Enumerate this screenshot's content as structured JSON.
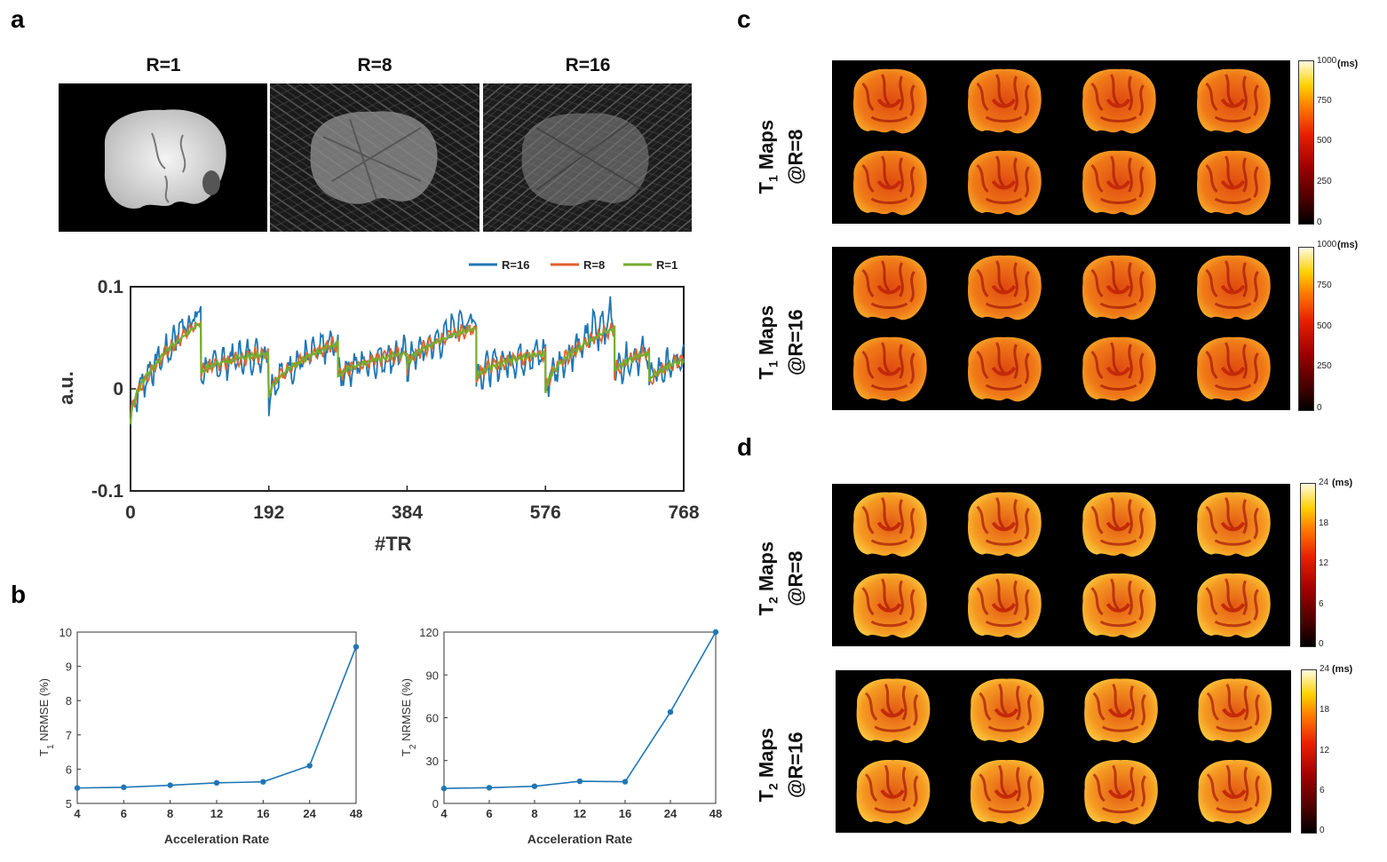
{
  "panel_a": {
    "letter": "a",
    "image_titles": [
      "R=1",
      "R=8",
      "R=16"
    ]
  },
  "panel_b": {
    "letter": "b"
  },
  "panel_c": {
    "letter": "c",
    "rows": [
      {
        "label_main": "T",
        "label_sub": "1",
        "label_rest": " Maps",
        "label_line2": "@R=8",
        "cbar_ticks": [
          "1000",
          "750",
          "500",
          "250",
          "0"
        ],
        "unit": "(ms)"
      },
      {
        "label_main": "T",
        "label_sub": "1",
        "label_rest": " Maps",
        "label_line2": "@R=16",
        "cbar_ticks": [
          "1000",
          "750",
          "500",
          "250",
          "0"
        ],
        "unit": "(ms)"
      }
    ]
  },
  "panel_d": {
    "letter": "d",
    "rows": [
      {
        "label_main": "T",
        "label_sub": "2",
        "label_rest": " Maps",
        "label_line2": "@R=8",
        "cbar_ticks": [
          "24",
          "18",
          "12",
          "6",
          "0"
        ],
        "unit": "(ms)"
      },
      {
        "label_main": "T",
        "label_sub": "2",
        "label_rest": " Maps",
        "label_line2": "@R=16",
        "cbar_ticks": [
          "24",
          "18",
          "12",
          "6",
          "0"
        ],
        "unit": "(ms)"
      }
    ]
  },
  "colors": {
    "r16": "#1f77b4",
    "r8": "#e0622a",
    "r1": "#77ac30",
    "blue": "#1f77b4"
  },
  "chart_data": [
    {
      "type": "line",
      "id": "signal",
      "title": "",
      "xlabel": "#TR",
      "ylabel": "a.u.",
      "xlim": [
        0,
        768
      ],
      "ylim": [
        -0.1,
        0.1
      ],
      "xticks": [
        0,
        192,
        384,
        576,
        768
      ],
      "yticks": [
        -0.1,
        0,
        0.1
      ],
      "xtick_labels": [
        "0",
        "192",
        "384",
        "576",
        "768"
      ],
      "ytick_labels": [
        "-0.1",
        "0",
        "0.1"
      ],
      "legend": [
        "R=16",
        "R=8",
        "R=1"
      ],
      "legend_position": "top-right",
      "segments": [
        {
          "x0": 0,
          "x1": 98,
          "y0": -0.035,
          "y1": 0.065
        },
        {
          "x0": 98,
          "x1": 192,
          "y0": 0.015,
          "y1": 0.035
        },
        {
          "x0": 192,
          "x1": 288,
          "y0": -0.01,
          "y1": 0.045
        },
        {
          "x0": 288,
          "x1": 384,
          "y0": 0.01,
          "y1": 0.035
        },
        {
          "x0": 384,
          "x1": 480,
          "y0": 0.02,
          "y1": 0.06
        },
        {
          "x0": 480,
          "x1": 576,
          "y0": 0.01,
          "y1": 0.035
        },
        {
          "x0": 576,
          "x1": 672,
          "y0": -0.005,
          "y1": 0.06
        },
        {
          "x0": 672,
          "x1": 720,
          "y0": 0.015,
          "y1": 0.035
        },
        {
          "x0": 720,
          "x1": 768,
          "y0": 0.005,
          "y1": 0.028
        }
      ]
    },
    {
      "type": "line",
      "id": "t1_nrmse",
      "xlabel": "Acceleration Rate",
      "ylabel_main": "T",
      "ylabel_sub": "1",
      "ylabel_rest": " NRMSE (%)",
      "categories": [
        "4",
        "6",
        "8",
        "12",
        "16",
        "24",
        "48"
      ],
      "values": [
        5.45,
        5.47,
        5.53,
        5.6,
        5.63,
        6.1,
        9.57
      ],
      "ylim": [
        5,
        10
      ],
      "yticks": [
        5,
        6,
        7,
        8,
        9,
        10
      ],
      "ytick_labels": [
        "5",
        "6",
        "7",
        "8",
        "9",
        "10"
      ]
    },
    {
      "type": "line",
      "id": "t2_nrmse",
      "xlabel": "Acceleration Rate",
      "ylabel_main": "T",
      "ylabel_sub": "2",
      "ylabel_rest": " NRMSE (%)",
      "categories": [
        "4",
        "6",
        "8",
        "12",
        "16",
        "24",
        "48"
      ],
      "values": [
        10.5,
        11.0,
        12.0,
        15.5,
        15.2,
        64.0,
        120.0
      ],
      "ylim": [
        0,
        120
      ],
      "yticks": [
        0,
        30,
        60,
        90,
        120
      ],
      "ytick_labels": [
        "0",
        "30",
        "60",
        "90",
        "120"
      ]
    }
  ]
}
